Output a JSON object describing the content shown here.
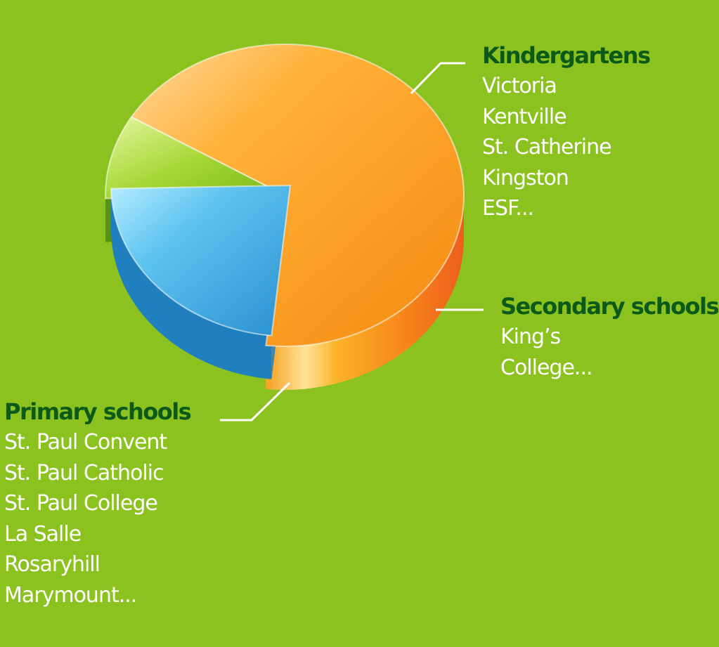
{
  "chart_data": {
    "type": "pie",
    "title": "",
    "slices": [
      {
        "label": "Kindergartens",
        "value": 23,
        "color": "#3aa0d8"
      },
      {
        "label": "Secondary schools",
        "value": 9,
        "color": "#93cc2a"
      },
      {
        "label": "Primary schools",
        "value": 68,
        "color": "#fca51a"
      }
    ],
    "style": "3d-exploded",
    "legend": "callouts"
  },
  "groups": {
    "kindergartens": {
      "title": "Kindergartens",
      "items": [
        "Victoria",
        "Kentville",
        "St. Catherine",
        "Kingston",
        "ESF..."
      ]
    },
    "secondary": {
      "title": "Secondary schools",
      "items": [
        "King’s",
        "College..."
      ]
    },
    "primary": {
      "title": "Primary schools",
      "items": [
        "St. Paul Convent",
        "St. Paul Catholic",
        "St. Paul College",
        "La Salle",
        "Rosaryhill",
        "Marymount..."
      ]
    }
  },
  "colors": {
    "background": "#8cc21f",
    "title_text": "#0b5a1a",
    "item_text": "#ffffff",
    "orange_side": "#f07a18",
    "green_side": "#4f8a10",
    "blue_side": "#1f7fbf"
  }
}
